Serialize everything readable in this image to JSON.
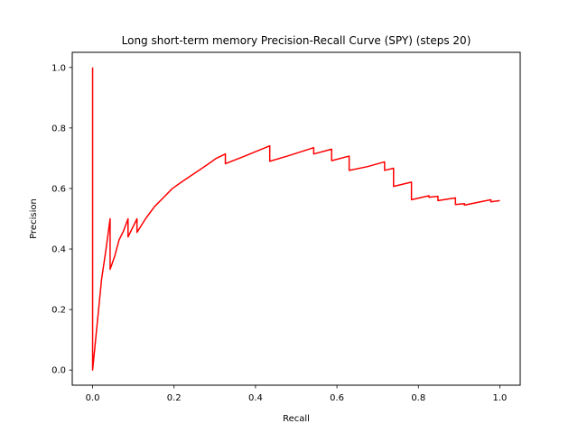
{
  "chart_data": {
    "type": "line",
    "title": "Long short-term memory Precision-Recall Curve (SPY) (steps 20)",
    "xlabel": "Recall",
    "ylabel": "Precision",
    "xlim": [
      -0.05,
      1.05
    ],
    "ylim": [
      -0.05,
      1.05
    ],
    "xticks": [
      0.0,
      0.2,
      0.4,
      0.6,
      0.8,
      1.0
    ],
    "yticks": [
      0.0,
      0.2,
      0.4,
      0.6,
      0.8,
      1.0
    ],
    "xtick_labels": [
      "0.0",
      "0.2",
      "0.4",
      "0.6",
      "0.8",
      "1.0"
    ],
    "ytick_labels": [
      "0.0",
      "0.2",
      "0.4",
      "0.6",
      "0.8",
      "1.0"
    ],
    "grid": false,
    "series": [
      {
        "color": "#ff0000",
        "points": [
          [
            0.0,
            1.0
          ],
          [
            0.0,
            0.0
          ],
          [
            0.011,
            0.15
          ],
          [
            0.022,
            0.3
          ],
          [
            0.033,
            0.4
          ],
          [
            0.043,
            0.5
          ],
          [
            0.043,
            0.333
          ],
          [
            0.054,
            0.375
          ],
          [
            0.065,
            0.43
          ],
          [
            0.076,
            0.46
          ],
          [
            0.087,
            0.5
          ],
          [
            0.087,
            0.44
          ],
          [
            0.098,
            0.47
          ],
          [
            0.109,
            0.5
          ],
          [
            0.109,
            0.455
          ],
          [
            0.13,
            0.5
          ],
          [
            0.152,
            0.54
          ],
          [
            0.174,
            0.57
          ],
          [
            0.196,
            0.6
          ],
          [
            0.217,
            0.62
          ],
          [
            0.239,
            0.64
          ],
          [
            0.261,
            0.66
          ],
          [
            0.283,
            0.68
          ],
          [
            0.304,
            0.7
          ],
          [
            0.326,
            0.714
          ],
          [
            0.326,
            0.682
          ],
          [
            0.37,
            0.705
          ],
          [
            0.435,
            0.741
          ],
          [
            0.435,
            0.69
          ],
          [
            0.478,
            0.707
          ],
          [
            0.543,
            0.735
          ],
          [
            0.543,
            0.714
          ],
          [
            0.587,
            0.73
          ],
          [
            0.587,
            0.692
          ],
          [
            0.63,
            0.707
          ],
          [
            0.63,
            0.66
          ],
          [
            0.674,
            0.672
          ],
          [
            0.717,
            0.688
          ],
          [
            0.717,
            0.66
          ],
          [
            0.739,
            0.667
          ],
          [
            0.739,
            0.607
          ],
          [
            0.783,
            0.621
          ],
          [
            0.783,
            0.563
          ],
          [
            0.826,
            0.576
          ],
          [
            0.826,
            0.571
          ],
          [
            0.848,
            0.574
          ],
          [
            0.848,
            0.56
          ],
          [
            0.891,
            0.569
          ],
          [
            0.891,
            0.547
          ],
          [
            0.913,
            0.55
          ],
          [
            0.913,
            0.545
          ],
          [
            0.978,
            0.563
          ],
          [
            0.978,
            0.556
          ],
          [
            1.0,
            0.56
          ]
        ]
      }
    ]
  }
}
